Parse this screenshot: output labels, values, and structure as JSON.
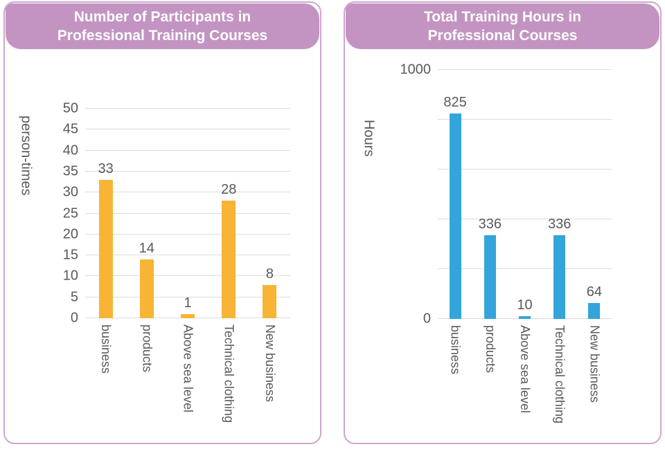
{
  "theme": {
    "card_border_color": "#cfa5cf",
    "title_bg_color": "#c394c2",
    "title_text_color": "#ffffff",
    "grid_color": "#dcdcdc",
    "label_color": "#595959"
  },
  "chart_data": [
    {
      "type": "bar",
      "title": "Number of Participants in Professional Training Courses",
      "title_lines": [
        "Number of Participants in",
        "Professional Training Courses"
      ],
      "ylabel": "person-times",
      "xlabel": "",
      "categories": [
        "business",
        "products",
        "Above sea level",
        "Technical clothing",
        "New business"
      ],
      "values": [
        33,
        14,
        1,
        28,
        8
      ],
      "value_labels": [
        "33",
        "14",
        "1",
        "28",
        "8"
      ],
      "bar_color": "#f8b434",
      "ylim": [
        0,
        50
      ],
      "grid": true,
      "legend": false,
      "yticks": [
        {
          "value": 0,
          "label": "0"
        },
        {
          "value": 5,
          "label": "5"
        },
        {
          "value": 10,
          "label": "10"
        },
        {
          "value": 15,
          "label": "15"
        },
        {
          "value": 20,
          "label": "20"
        },
        {
          "value": 25,
          "label": "25"
        },
        {
          "value": 30,
          "label": "30"
        },
        {
          "value": 35,
          "label": "35"
        },
        {
          "value": 40,
          "label": "40"
        },
        {
          "value": 45,
          "label": "45"
        },
        {
          "value": 50,
          "label": "50"
        }
      ]
    },
    {
      "type": "bar",
      "title": "Total Training Hours in Professional Courses",
      "title_lines": [
        "Total Training Hours in",
        "Professional Courses"
      ],
      "ylabel": "Hours",
      "xlabel": "",
      "categories": [
        "business",
        "products",
        "Above sea level",
        "Technical clothing",
        "New business"
      ],
      "values": [
        825,
        336,
        10,
        336,
        64
      ],
      "value_labels": [
        "825",
        "336",
        "10",
        "336",
        "64"
      ],
      "bar_color": "#33a5db",
      "ylim": [
        0,
        1000
      ],
      "grid": true,
      "legend": false,
      "yticks": [
        {
          "value": 0,
          "label": "0"
        },
        {
          "value": 200,
          "label": ""
        },
        {
          "value": 400,
          "label": ""
        },
        {
          "value": 600,
          "label": ""
        },
        {
          "value": 800,
          "label": ""
        },
        {
          "value": 1000,
          "label": "1000"
        }
      ]
    }
  ]
}
